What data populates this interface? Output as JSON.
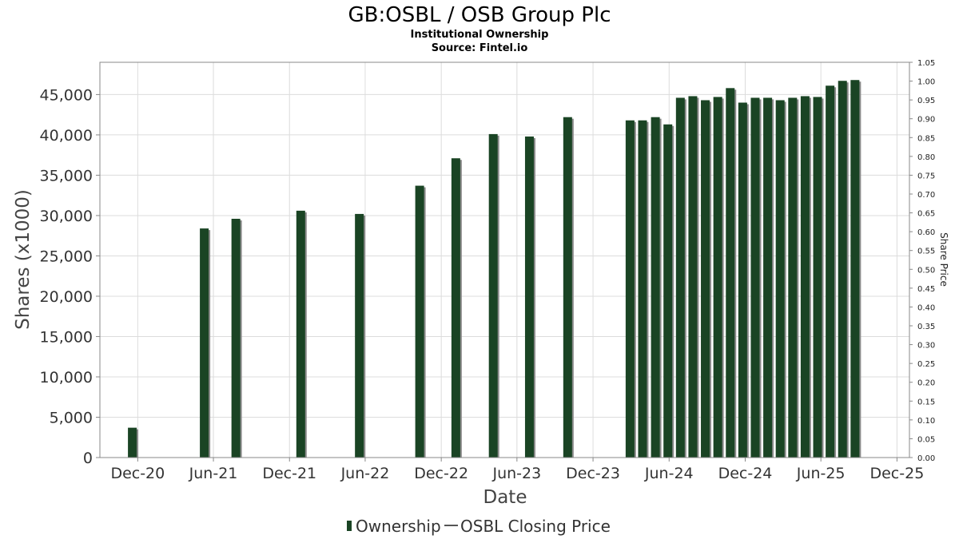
{
  "chart_data": {
    "type": "bar",
    "title": "GB:OSBL / OSB Group Plc",
    "subtitle_lines": [
      "Institutional Ownership",
      "Source: Fintel.io"
    ],
    "xlabel": "Date",
    "ylabel": "Shares (x1000)",
    "y2label": "Share Price",
    "x_ticks": [
      "Dec-20",
      "Jun-21",
      "Dec-21",
      "Jun-22",
      "Dec-22",
      "Jun-23",
      "Dec-23",
      "Jun-24",
      "Dec-24",
      "Jun-25",
      "Dec-25"
    ],
    "x_range": [
      "2020-09-01",
      "2025-12-31"
    ],
    "ylim": [
      0,
      49000
    ],
    "y_ticks": [
      "0",
      "5,000",
      "10,000",
      "15,000",
      "20,000",
      "25,000",
      "30,000",
      "35,000",
      "40,000",
      "45,000"
    ],
    "y2lim": [
      0,
      1.05
    ],
    "y2_ticks": [
      "0.00",
      "0.05",
      "0.10",
      "0.15",
      "0.20",
      "0.25",
      "0.30",
      "0.35",
      "0.40",
      "0.45",
      "0.50",
      "0.55",
      "0.60",
      "0.65",
      "0.70",
      "0.75",
      "0.80",
      "0.85",
      "0.90",
      "0.95",
      "1.00",
      "1.05"
    ],
    "grid": true,
    "legend_position": "bottom",
    "series": [
      {
        "name": "Ownership",
        "color": "#1a4424",
        "points": [
          {
            "date": "2020-11-18",
            "value": 3700
          },
          {
            "date": "2021-05-10",
            "value": 28400
          },
          {
            "date": "2021-07-25",
            "value": 29600
          },
          {
            "date": "2021-12-28",
            "value": 30600
          },
          {
            "date": "2022-05-18",
            "value": 30200
          },
          {
            "date": "2022-10-10",
            "value": 33700
          },
          {
            "date": "2023-01-05",
            "value": 37100
          },
          {
            "date": "2023-04-05",
            "value": 40100
          },
          {
            "date": "2023-07-01",
            "value": 39800
          },
          {
            "date": "2023-10-01",
            "value": 42200
          },
          {
            "date": "2024-02-28",
            "value": 41800
          },
          {
            "date": "2024-03-29",
            "value": 41800
          },
          {
            "date": "2024-04-29",
            "value": 42200
          },
          {
            "date": "2024-05-29",
            "value": 41300
          },
          {
            "date": "2024-06-28",
            "value": 44600
          },
          {
            "date": "2024-07-28",
            "value": 44800
          },
          {
            "date": "2024-08-27",
            "value": 44300
          },
          {
            "date": "2024-09-26",
            "value": 44700
          },
          {
            "date": "2024-10-26",
            "value": 45800
          },
          {
            "date": "2024-11-25",
            "value": 44000
          },
          {
            "date": "2024-12-25",
            "value": 44600
          },
          {
            "date": "2025-01-24",
            "value": 44600
          },
          {
            "date": "2025-02-23",
            "value": 44300
          },
          {
            "date": "2025-03-25",
            "value": 44600
          },
          {
            "date": "2025-04-24",
            "value": 44800
          },
          {
            "date": "2025-05-24",
            "value": 44700
          },
          {
            "date": "2025-06-23",
            "value": 46100
          },
          {
            "date": "2025-07-23",
            "value": 46700
          },
          {
            "date": "2025-08-22",
            "value": 46800
          }
        ]
      },
      {
        "name": "OSBL Closing Price",
        "color": "#555555",
        "points": []
      }
    ]
  },
  "legend": {
    "ownership_label": "Ownership",
    "price_label": "OSBL Closing Price"
  }
}
